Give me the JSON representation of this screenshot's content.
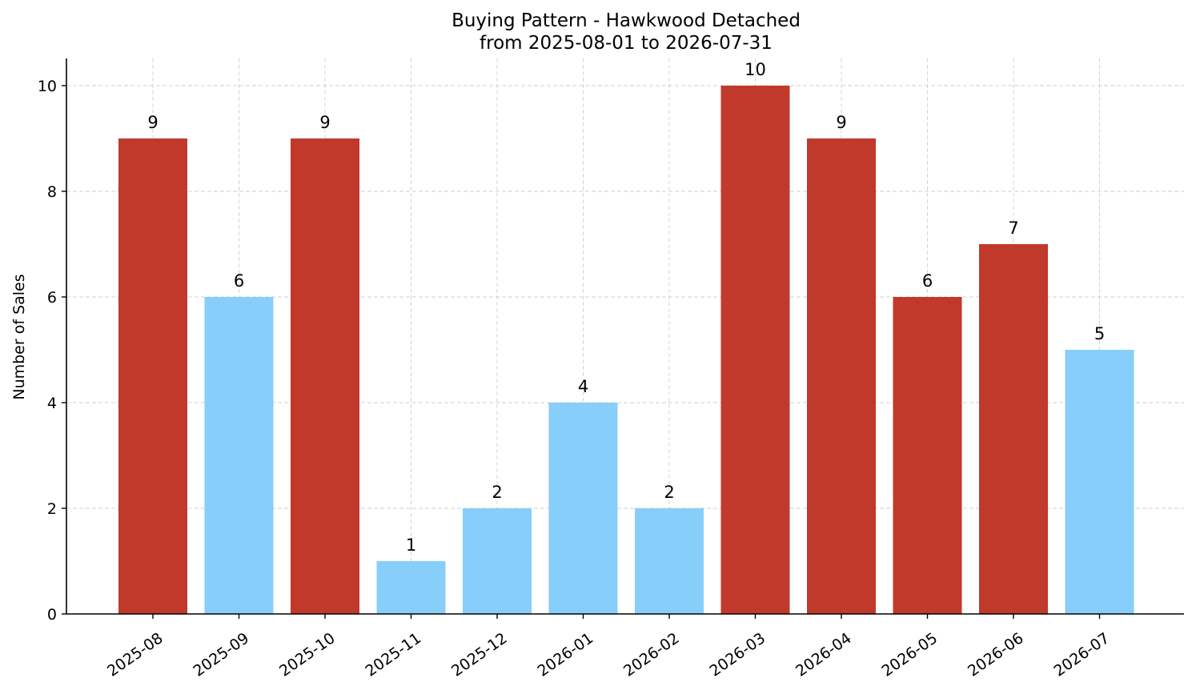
{
  "chart_data": {
    "type": "bar",
    "title": "Buying Pattern - Hawkwood Detached",
    "subtitle": "from 2025-08-01 to 2026-07-31",
    "xlabel": "",
    "ylabel": "Number of Sales",
    "categories": [
      "2025-08",
      "2025-09",
      "2025-10",
      "2025-11",
      "2025-12",
      "2026-01",
      "2026-02",
      "2026-03",
      "2026-04",
      "2026-05",
      "2026-06",
      "2026-07"
    ],
    "values": [
      9,
      6,
      9,
      1,
      2,
      4,
      2,
      10,
      9,
      6,
      7,
      5
    ],
    "bar_colors": [
      "#c0392b",
      "#87cefa",
      "#c0392b",
      "#87cefa",
      "#87cefa",
      "#87cefa",
      "#87cefa",
      "#c0392b",
      "#c0392b",
      "#c0392b",
      "#c0392b",
      "#87cefa"
    ],
    "ylim": [
      0,
      10.5
    ],
    "yticks": [
      0,
      2,
      4,
      6,
      8,
      10
    ],
    "grid": true,
    "legend": "none",
    "colors": {
      "high": "#c0392b",
      "low": "#87cefa",
      "grid": "#d0d0d0",
      "axis": "#000000"
    }
  }
}
